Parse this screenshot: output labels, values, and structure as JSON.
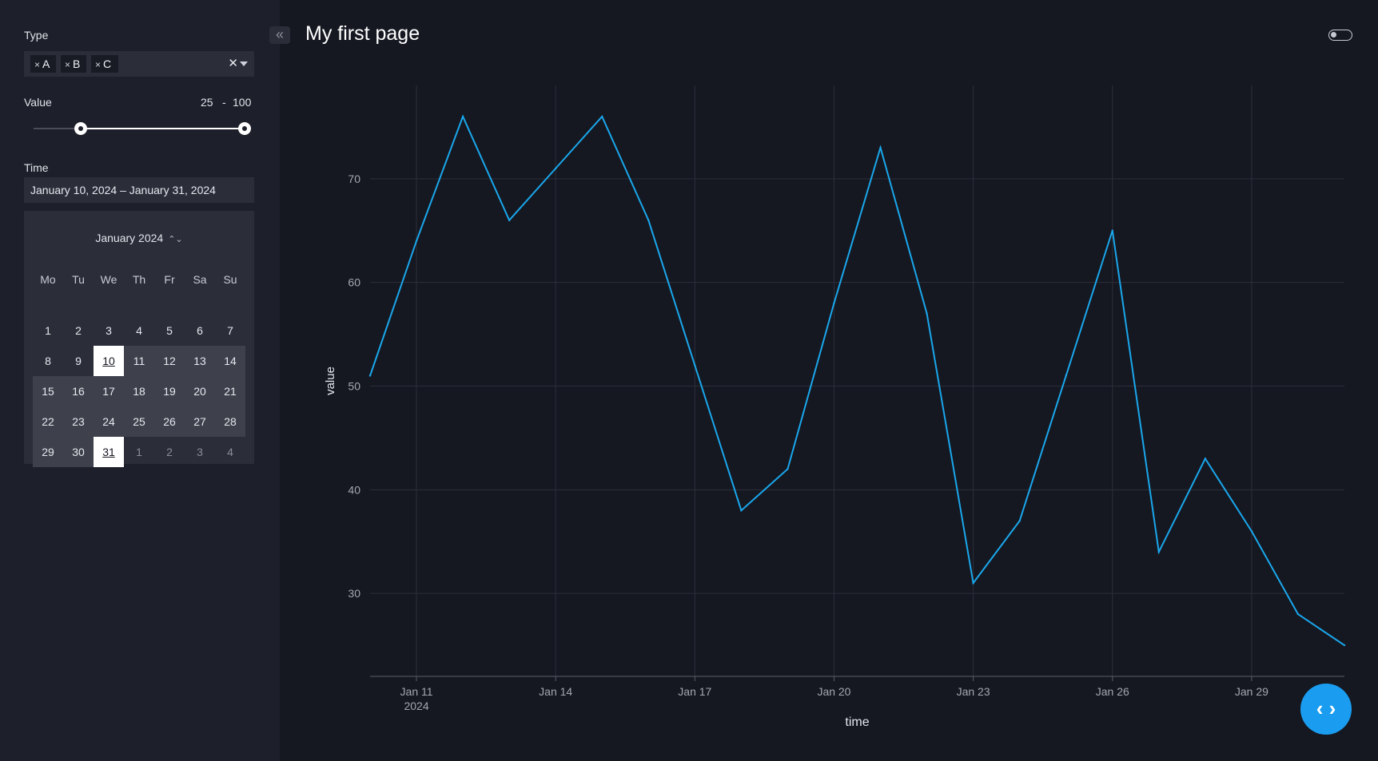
{
  "sidebar": {
    "type_label": "Type",
    "type_chips": [
      "A",
      "B",
      "C"
    ],
    "chip_remove_glyph": "×",
    "clear_glyph": "✕",
    "value_label": "Value",
    "value_min": "25",
    "value_sep": "-",
    "value_max": "100",
    "slider_range": [
      25,
      100
    ],
    "time_label": "Time",
    "date_range_text": "January 10, 2024 – January 31, 2024",
    "calendar": {
      "month_label": "January 2024",
      "weekdays": [
        "Mo",
        "Tu",
        "We",
        "Th",
        "Fr",
        "Sa",
        "Su"
      ],
      "weeks": [
        [
          "1",
          "2",
          "3",
          "4",
          "5",
          "6",
          "7"
        ],
        [
          "8",
          "9",
          "10",
          "11",
          "12",
          "13",
          "14"
        ],
        [
          "15",
          "16",
          "17",
          "18",
          "19",
          "20",
          "21"
        ],
        [
          "22",
          "23",
          "24",
          "25",
          "26",
          "27",
          "28"
        ],
        [
          "29",
          "30",
          "31",
          "1",
          "2",
          "3",
          "4"
        ]
      ],
      "selected_start": "10",
      "selected_end": "31"
    }
  },
  "header": {
    "title": "My first page",
    "collapse_glyph": "«"
  },
  "fab": {
    "glyph": "‹ ›"
  },
  "colors": {
    "line": "#1aa7ec",
    "background": "#151821",
    "sidebar": "#1d202a",
    "fab": "#1a9cf0"
  },
  "chart_data": {
    "type": "line",
    "xlabel": "time",
    "ylabel": "value",
    "x_ticks": [
      "Jan 11",
      "Jan 14",
      "Jan 17",
      "Jan 20",
      "Jan 23",
      "Jan 26",
      "Jan 29"
    ],
    "x_tick_year": "2024",
    "y_ticks": [
      "30",
      "40",
      "50",
      "60",
      "70"
    ],
    "x_range": [
      "2024-01-10",
      "2024-01-31"
    ],
    "ylim": [
      22,
      79
    ],
    "grid": true,
    "series": [
      {
        "x": [
          "2024-01-10",
          "2024-01-11",
          "2024-01-12",
          "2024-01-13",
          "2024-01-14",
          "2024-01-15",
          "2024-01-16",
          "2024-01-17",
          "2024-01-18",
          "2024-01-19",
          "2024-01-20",
          "2024-01-21",
          "2024-01-22",
          "2024-01-23",
          "2024-01-24",
          "2024-01-25",
          "2024-01-26",
          "2024-01-27",
          "2024-01-28",
          "2024-01-29",
          "2024-01-30",
          "2024-01-31"
        ],
        "y": [
          51,
          64,
          76,
          66,
          71,
          76,
          66,
          52,
          38,
          42,
          58,
          73,
          57,
          31,
          37,
          51,
          65,
          34,
          43,
          36,
          28,
          25
        ]
      }
    ]
  }
}
